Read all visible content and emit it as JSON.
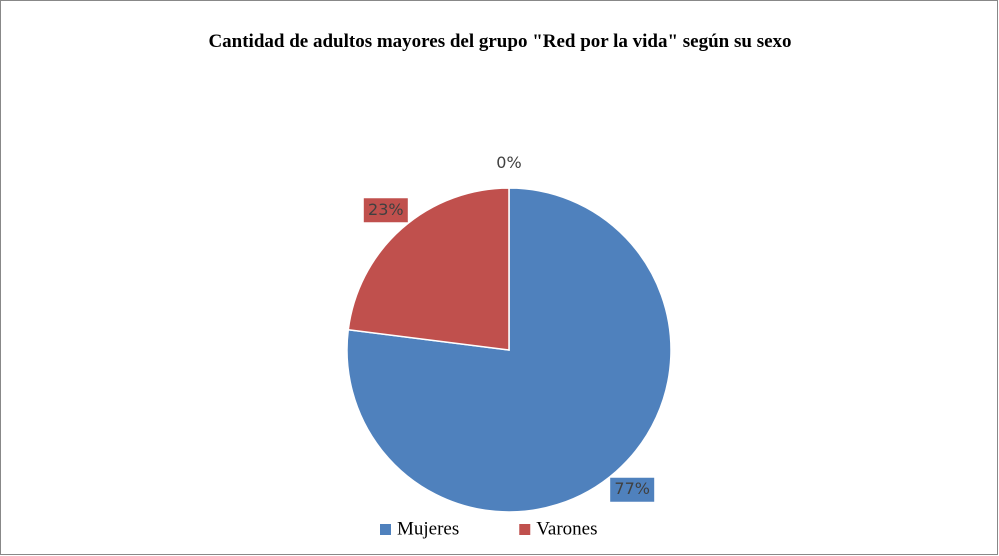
{
  "chart_data": {
    "type": "pie",
    "title": "Cantidad de adultos mayores del grupo \"Red por la vida\" según su sexo",
    "categories": [
      "Mujeres",
      "Varones",
      null
    ],
    "values": [
      77,
      23,
      0
    ],
    "value_labels": [
      "77%",
      "23%",
      "0%"
    ],
    "colors": [
      "#4f81bd",
      "#c0504d",
      "#9bbb59"
    ],
    "legend": "bottom"
  }
}
